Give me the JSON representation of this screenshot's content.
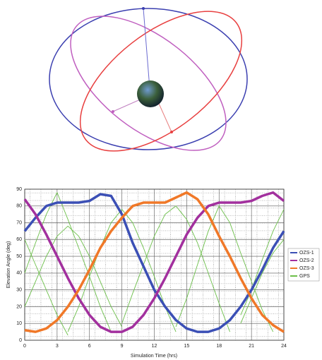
{
  "chart_data": {
    "type": "line",
    "xlabel": "Simulation Time (hrs)",
    "ylabel": "Elevation Angle (deg)",
    "x": [
      0,
      1,
      2,
      3,
      4,
      5,
      6,
      7,
      8,
      9,
      10,
      11,
      12,
      13,
      14,
      15,
      16,
      17,
      18,
      19,
      20,
      21,
      22,
      23,
      24
    ],
    "xlim": [
      0,
      24
    ],
    "xticks": [
      0,
      3,
      6,
      9,
      12,
      15,
      18,
      21,
      24
    ],
    "ylim": [
      0,
      90
    ],
    "yticks": [
      0,
      10,
      20,
      30,
      40,
      50,
      60,
      70,
      80,
      90
    ],
    "grid": true,
    "series": [
      {
        "name": "OZS-1",
        "color": "#3b4fb5",
        "values": [
          65,
          73,
          80,
          82,
          82,
          82,
          83,
          87,
          86,
          75,
          58,
          44,
          30,
          20,
          12,
          7,
          5,
          5,
          7,
          12,
          20,
          30,
          42,
          55,
          65
        ]
      },
      {
        "name": "OZS-2",
        "color": "#a2309e",
        "values": [
          84,
          75,
          63,
          50,
          37,
          25,
          15,
          8,
          5,
          5,
          8,
          15,
          25,
          37,
          50,
          63,
          73,
          80,
          82,
          82,
          82,
          83,
          86,
          88,
          83
        ]
      },
      {
        "name": "OZS-3",
        "color": "#f07828",
        "values": [
          6,
          5,
          7,
          12,
          20,
          30,
          42,
          55,
          65,
          73,
          80,
          82,
          82,
          82,
          85,
          88,
          84,
          75,
          62,
          50,
          37,
          25,
          15,
          9,
          5
        ]
      },
      {
        "name": "GPS",
        "color": "#6cbf4a",
        "tracks": [
          [
            40,
            58,
            75,
            88,
            72,
            55,
            38,
            20,
            5,
            null,
            null,
            null,
            null,
            null,
            null,
            null,
            null,
            null,
            null,
            null,
            null,
            null,
            null,
            null,
            null
          ],
          [
            null,
            null,
            null,
            null,
            5,
            20,
            38,
            55,
            70,
            78,
            70,
            55,
            38,
            20,
            5,
            null,
            null,
            null,
            null,
            null,
            null,
            null,
            null,
            null,
            null
          ],
          [
            null,
            null,
            null,
            null,
            null,
            null,
            null,
            null,
            null,
            10,
            28,
            45,
            62,
            75,
            80,
            72,
            58,
            40,
            22,
            5,
            null,
            null,
            null,
            null,
            null
          ],
          [
            null,
            null,
            null,
            null,
            null,
            null,
            null,
            null,
            null,
            null,
            null,
            null,
            null,
            null,
            8,
            25,
            45,
            65,
            80,
            70,
            52,
            35,
            18,
            5,
            null
          ],
          [
            60,
            45,
            30,
            15,
            3,
            null,
            null,
            null,
            null,
            null,
            null,
            null,
            null,
            null,
            null,
            null,
            null,
            null,
            null,
            null,
            15,
            30,
            48,
            65,
            78
          ],
          [
            20,
            35,
            50,
            62,
            68,
            62,
            50,
            35,
            20,
            8,
            null,
            null,
            null,
            null,
            null,
            null,
            null,
            null,
            null,
            null,
            10,
            25,
            40,
            52,
            60
          ]
        ]
      }
    ],
    "legend": "right"
  }
}
